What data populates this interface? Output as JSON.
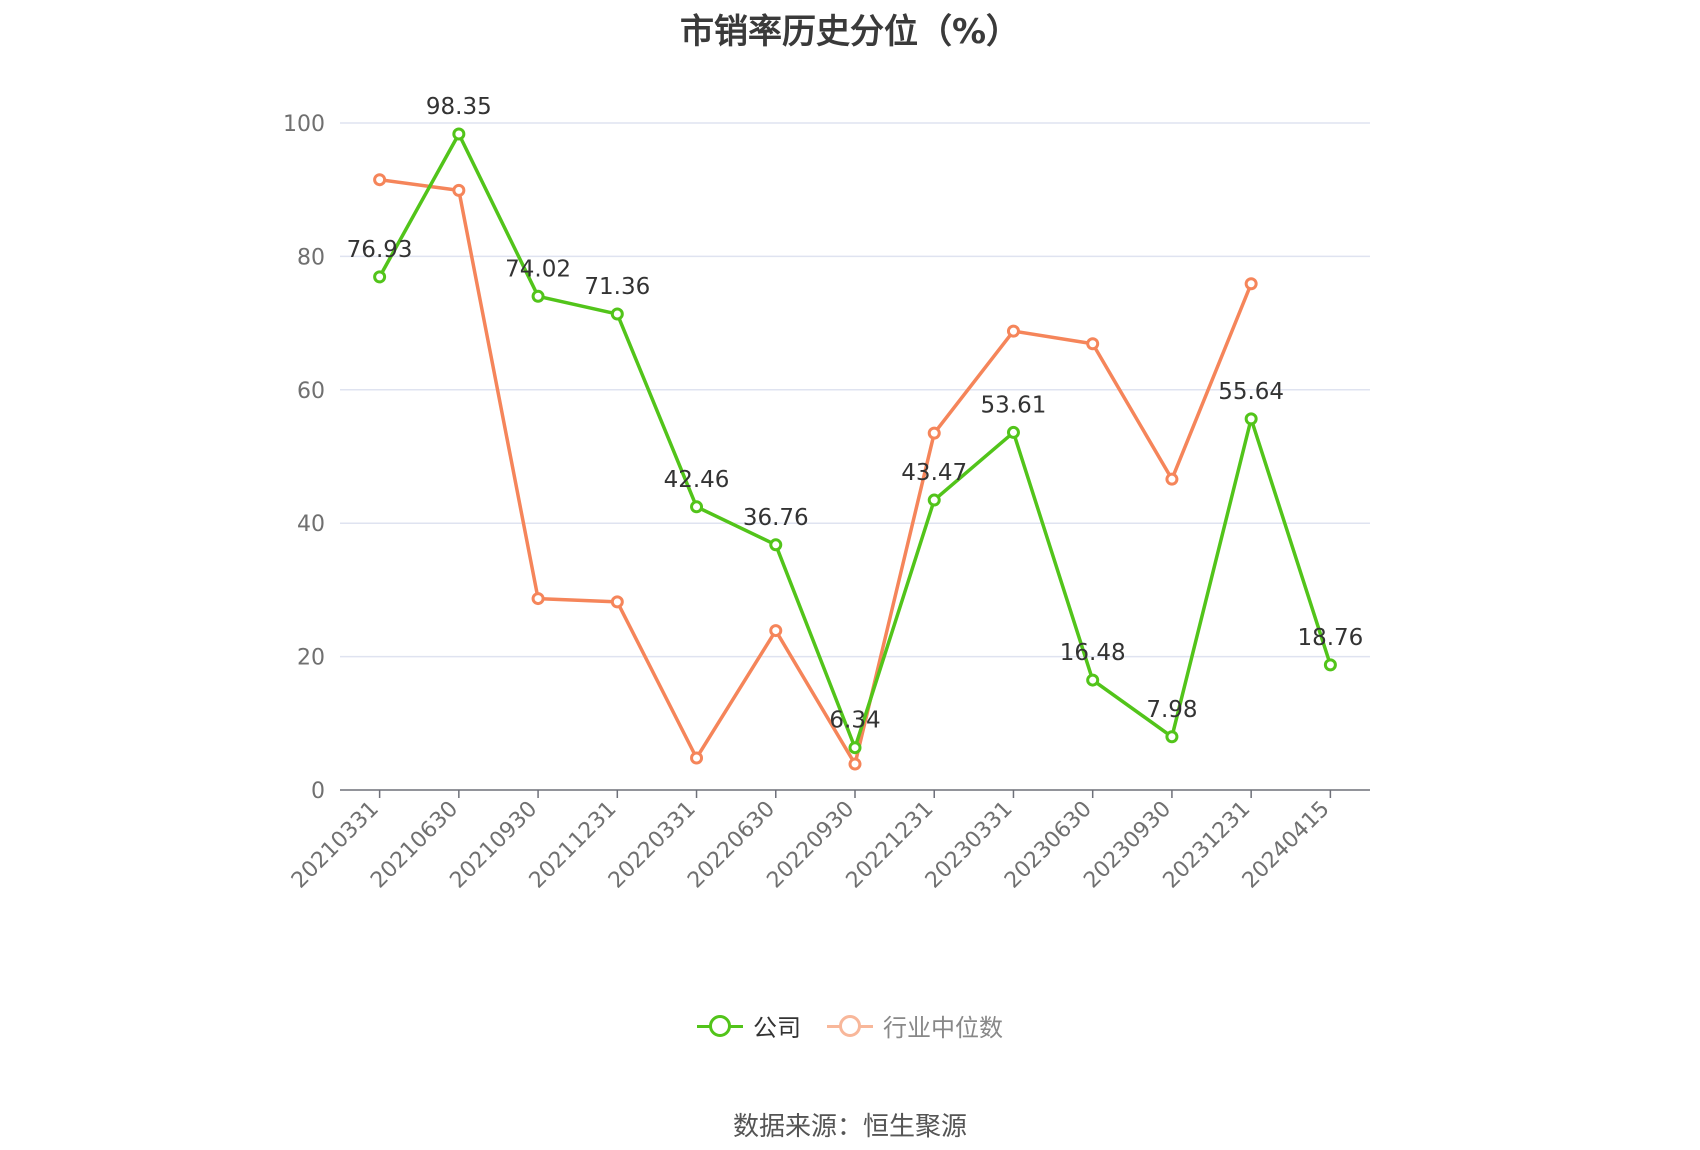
{
  "chart_data": {
    "type": "line",
    "title": "市销率历史分位（%）",
    "categories": [
      "20210331",
      "20210630",
      "20210930",
      "20211231",
      "20220331",
      "20220630",
      "20220930",
      "20221231",
      "20230331",
      "20230630",
      "20230930",
      "20231231",
      "20240415"
    ],
    "series": [
      {
        "name": "公司",
        "color": "#52c41a",
        "values": [
          76.93,
          98.35,
          74.02,
          71.36,
          42.46,
          36.76,
          6.34,
          43.47,
          53.61,
          16.48,
          7.98,
          55.64,
          18.76
        ],
        "labels": [
          "76.93",
          "98.35",
          "74.02",
          "71.36",
          "42.46",
          "36.76",
          "6.34",
          "43.47",
          "53.61",
          "16.48",
          "7.98",
          "55.64",
          "18.76"
        ]
      },
      {
        "name": "行业中位数",
        "color": "#f5855a",
        "values": [
          91.5,
          89.9,
          28.7,
          28.2,
          4.8,
          23.9,
          3.9,
          53.5,
          68.8,
          66.9,
          46.6,
          75.9,
          null
        ]
      }
    ],
    "yticks": [
      "0",
      "20",
      "40",
      "60",
      "80",
      "100"
    ],
    "ylim": [
      0,
      100
    ],
    "grid": true,
    "legend_position": "bottom-center"
  },
  "legend": [
    {
      "label": "公司",
      "color": "#52c41a",
      "text_color": "#333333"
    },
    {
      "label": "行业中位数",
      "color": "#f5855a",
      "text_color": "#888888"
    }
  ],
  "source": "数据来源：恒生聚源"
}
